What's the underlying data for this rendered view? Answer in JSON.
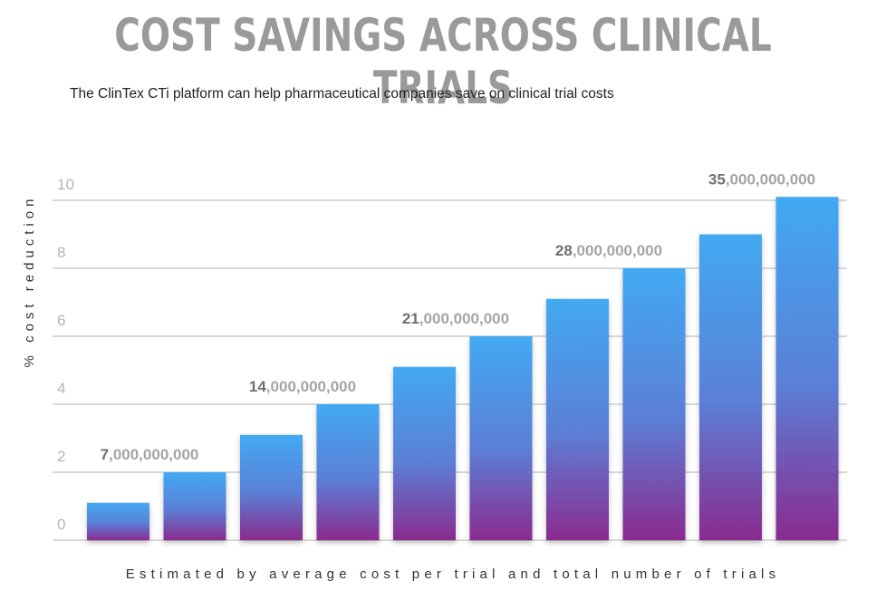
{
  "chart_data": {
    "type": "bar",
    "title": "COST SAVINGS ACROSS CLINICAL TRIALS",
    "subtitle": "The ClinTex CTi platform can help pharmaceutical companies save on clinical trial costs",
    "xlabel": "Estimated by average cost per trial and total number of trials",
    "ylabel": "% cost reduction",
    "ylim": [
      0,
      10
    ],
    "yticks": [
      "0",
      "2",
      "4",
      "6",
      "8",
      "10"
    ],
    "grid": true,
    "values": [
      1.1,
      2,
      3.1,
      4,
      5.1,
      6,
      7.1,
      8,
      9,
      10.1
    ],
    "data_labels": [
      {
        "index": 1,
        "bold": "7",
        "rest": ",000,000,000"
      },
      {
        "index": 3,
        "bold": "14",
        "rest": ",000,000,000"
      },
      {
        "index": 5,
        "bold": "21",
        "rest": ",000,000,000"
      },
      {
        "index": 7,
        "bold": "28",
        "rest": ",000,000,000"
      },
      {
        "index": 9,
        "bold": "35",
        "rest": ",000,000,000"
      }
    ],
    "colors": {
      "bar_top": "#42a9f2",
      "bar_bottom": "#8a2b8e",
      "grid": "#cccccc",
      "tick": "#b5b5b5",
      "title": "#9a9a9a"
    }
  }
}
